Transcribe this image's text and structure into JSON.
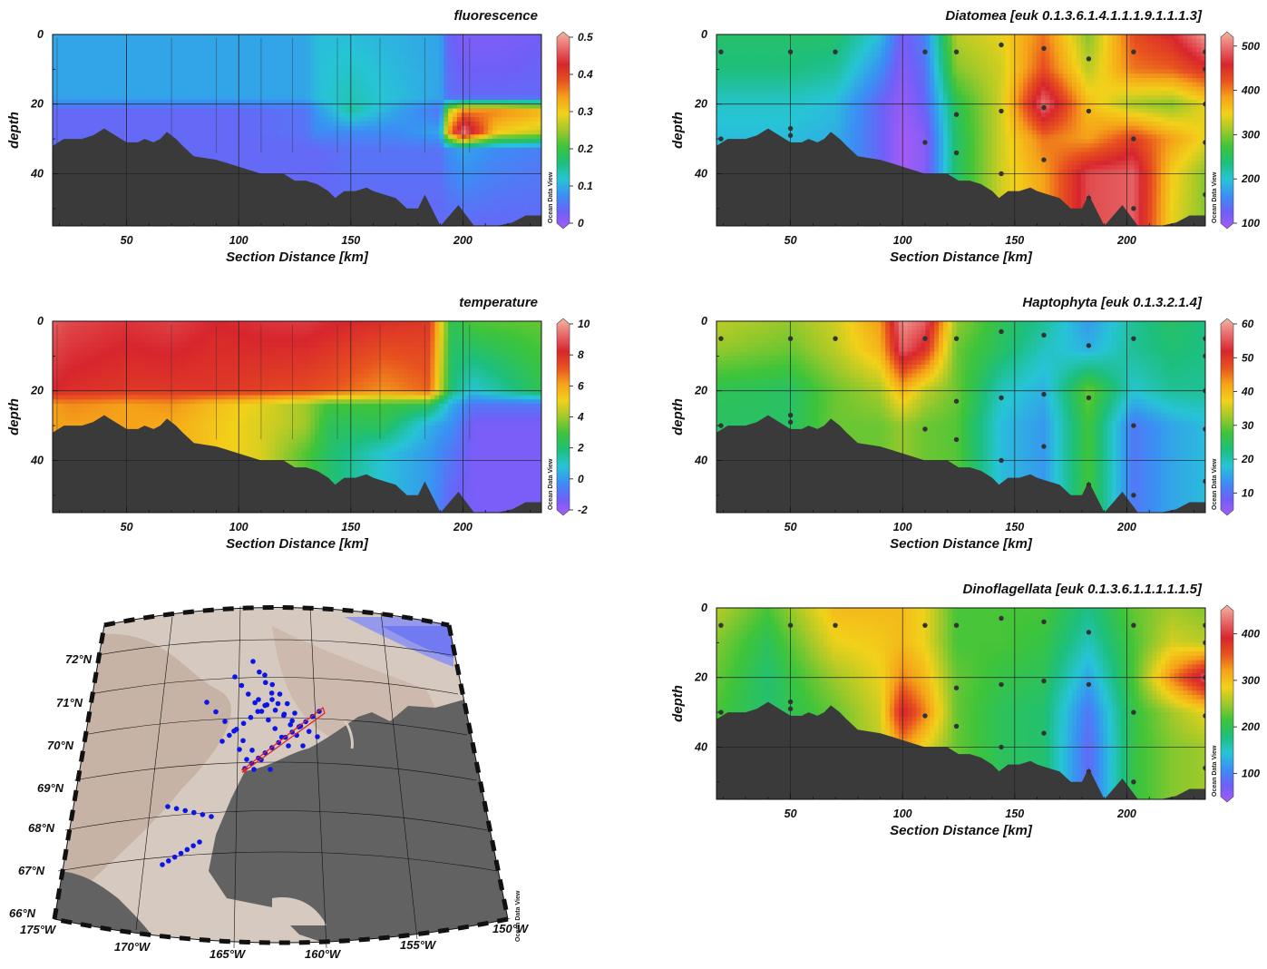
{
  "colors": {
    "bathymetry": "#3a3a3a",
    "grid": "#222222",
    "station_dot": "#333333",
    "map_land": "#626262",
    "map_shelf": "#d6c9bf",
    "map_deep_shelf": "#c7b2a6",
    "map_ice": "#8d93f0",
    "map_station": "#0b16e6",
    "map_track": "#e32020",
    "colormap": [
      "#a45cf5",
      "#6f5ff7",
      "#3a8ff4",
      "#27c4d6",
      "#1dbf7c",
      "#3ec43a",
      "#a0c92a",
      "#f2d11a",
      "#f5a319",
      "#e8521f",
      "#d7262d",
      "#e86a6a",
      "#f3b7a0"
    ]
  },
  "watermark": "Ocean Data View",
  "map": {
    "lat_labels": [
      "72°N",
      "71°N",
      "70°N",
      "69°N",
      "68°N",
      "67°N",
      "66°N"
    ],
    "lon_labels": [
      "175°W",
      "170°W",
      "165°W",
      "160°W",
      "155°W",
      "150°W"
    ]
  },
  "chart_data": [
    {
      "id": "fluorescence",
      "type": "heatmap",
      "title": "fluorescence",
      "xlabel": "Section Distance [km]",
      "ylabel": "depth",
      "xlim": [
        17,
        235
      ],
      "ylim": [
        55,
        0
      ],
      "xticks": [
        "50",
        "100",
        "150",
        "200"
      ],
      "yticks": [
        "0",
        "20",
        "40"
      ],
      "colorbar": {
        "range": [
          0,
          0.5
        ],
        "ticks": [
          "0",
          "0.1",
          "0.2",
          "0.3",
          "0.4",
          "0.5"
        ]
      },
      "station_distances_km": [
        19,
        50,
        70,
        90,
        110,
        124,
        144,
        163,
        183,
        203,
        235
      ],
      "field": {
        "cols": [
          17,
          40,
          70,
          100,
          130,
          135,
          150,
          170,
          190,
          193,
          200,
          215,
          235
        ],
        "rows": [
          0,
          18,
          22,
          28,
          33,
          55
        ],
        "values": [
          [
            0.1,
            0.1,
            0.1,
            0.1,
            0.1,
            0.12,
            0.12,
            0.11,
            0.1,
            0.05,
            0.03,
            0.03,
            0.04
          ],
          [
            0.1,
            0.1,
            0.1,
            0.1,
            0.1,
            0.12,
            0.14,
            0.12,
            0.1,
            0.06,
            0.05,
            0.05,
            0.05
          ],
          [
            0.05,
            0.05,
            0.05,
            0.05,
            0.06,
            0.09,
            0.15,
            0.1,
            0.06,
            0.25,
            0.35,
            0.35,
            0.32
          ],
          [
            0.05,
            0.05,
            0.05,
            0.05,
            0.06,
            0.08,
            0.08,
            0.08,
            0.1,
            0.32,
            0.48,
            0.3,
            0.27
          ],
          [
            0.05,
            0.05,
            0.05,
            0.05,
            0.05,
            0.05,
            0.06,
            0.06,
            0.06,
            0.08,
            0.1,
            0.08,
            0.07
          ],
          [
            0.05,
            0.05,
            0.05,
            0.05,
            0.05,
            0.05,
            0.05,
            0.05,
            0.05,
            0.05,
            0.05,
            0.05,
            0.05
          ]
        ]
      },
      "show_stations": false
    },
    {
      "id": "temperature",
      "type": "heatmap",
      "title": "temperature",
      "xlabel": "Section Distance [km]",
      "ylabel": "depth",
      "xlim": [
        17,
        235
      ],
      "ylim": [
        55,
        0
      ],
      "xticks": [
        "50",
        "100",
        "150",
        "200"
      ],
      "yticks": [
        "0",
        "20",
        "40"
      ],
      "colorbar": {
        "range": [
          -2,
          10
        ],
        "ticks": [
          "-2",
          "0",
          "2",
          "4",
          "6",
          "8",
          "10"
        ]
      },
      "station_distances_km": [
        19,
        50,
        70,
        90,
        110,
        124,
        144,
        163,
        183,
        203,
        235
      ],
      "field": {
        "cols": [
          17,
          25,
          50,
          70,
          90,
          110,
          130,
          140,
          165,
          185,
          195,
          205,
          235
        ],
        "rows": [
          0,
          20,
          24,
          30,
          38,
          55
        ],
        "values": [
          [
            8.8,
            8.5,
            8.2,
            8.4,
            8,
            8.2,
            8.3,
            8.1,
            7.8,
            7.6,
            2.5,
            3.2,
            3.4
          ],
          [
            8,
            7.8,
            7.6,
            7.6,
            7.6,
            7.4,
            7.2,
            7,
            6.2,
            6.8,
            2,
            1,
            2.6
          ],
          [
            6,
            6.3,
            6,
            6.2,
            5.4,
            4.8,
            4,
            3,
            3,
            2.6,
            0.5,
            -0.5,
            -0.5
          ],
          [
            6,
            6,
            6,
            5.8,
            5.2,
            4.7,
            4,
            2.5,
            2.5,
            0.6,
            0,
            -1.2,
            -1.2
          ],
          [
            6,
            6,
            6,
            5.8,
            5.2,
            4.7,
            3.2,
            2.3,
            1,
            0.2,
            -0.5,
            -1.2,
            -1.2
          ],
          [
            6,
            6,
            6,
            5.8,
            5.2,
            4.7,
            3,
            2.2,
            0.8,
            0.2,
            -1,
            -1.2,
            -1.2
          ]
        ]
      },
      "show_stations": false
    },
    {
      "id": "diatomea",
      "type": "heatmap",
      "title": "Diatomea [euk 0.1.3.6.1.4.1.1.1.9.1.1.1.3]",
      "xlabel": "Section Distance [km]",
      "ylabel": "depth",
      "xlim": [
        17,
        235
      ],
      "ylim": [
        55,
        0
      ],
      "xticks": [
        "50",
        "100",
        "150",
        "200"
      ],
      "yticks": [
        "0",
        "20",
        "40"
      ],
      "colorbar": {
        "range": [
          100,
          520
        ],
        "ticks": [
          "100",
          "200",
          "300",
          "400",
          "500"
        ]
      },
      "station_distances_km": [
        19,
        50,
        70,
        90,
        110,
        124,
        144,
        163,
        183,
        203,
        235
      ],
      "field": {
        "cols": [
          17,
          50,
          70,
          90,
          100,
          110,
          124,
          144,
          163,
          183,
          203,
          220,
          235
        ],
        "rows": [
          0,
          10,
          20,
          30,
          40,
          55
        ],
        "values": [
          [
            250,
            250,
            250,
            200,
            130,
            160,
            320,
            340,
            400,
            300,
            420,
            450,
            510
          ],
          [
            240,
            240,
            230,
            170,
            120,
            150,
            300,
            330,
            420,
            320,
            400,
            410,
            440
          ],
          [
            210,
            210,
            200,
            140,
            110,
            140,
            260,
            330,
            490,
            360,
            310,
            300,
            340
          ],
          [
            200,
            200,
            190,
            140,
            100,
            120,
            250,
            330,
            400,
            380,
            430,
            380,
            340
          ],
          [
            200,
            200,
            190,
            140,
            100,
            120,
            250,
            330,
            380,
            470,
            480,
            350,
            300
          ],
          [
            200,
            200,
            190,
            140,
            100,
            120,
            250,
            330,
            380,
            470,
            480,
            340,
            300
          ]
        ]
      },
      "show_stations": true
    },
    {
      "id": "haptophyta",
      "type": "heatmap",
      "title": "Haptophyta [euk 0.1.3.2.1.4]",
      "xlabel": "Section Distance [km]",
      "ylabel": "depth",
      "xlim": [
        17,
        235
      ],
      "ylim": [
        55,
        0
      ],
      "xticks": [
        "50",
        "100",
        "150",
        "200"
      ],
      "yticks": [
        "0",
        "20",
        "40"
      ],
      "colorbar": {
        "range": [
          5,
          60
        ],
        "ticks": [
          "10",
          "20",
          "30",
          "40",
          "50",
          "60"
        ]
      },
      "station_distances_km": [
        19,
        50,
        70,
        90,
        110,
        124,
        144,
        163,
        183,
        203,
        235
      ],
      "field": {
        "cols": [
          17,
          50,
          70,
          90,
          100,
          110,
          124,
          144,
          163,
          183,
          203,
          220,
          235
        ],
        "rows": [
          0,
          8,
          20,
          30,
          40,
          55
        ],
        "values": [
          [
            34,
            32,
            35,
            42,
            58,
            55,
            32,
            26,
            22,
            15,
            22,
            25,
            23
          ],
          [
            32,
            30,
            34,
            40,
            55,
            50,
            30,
            25,
            20,
            17,
            22,
            24,
            23
          ],
          [
            26,
            25,
            30,
            33,
            40,
            34,
            30,
            20,
            17,
            30,
            19,
            22,
            22
          ],
          [
            25,
            25,
            30,
            30,
            32,
            30,
            29,
            18,
            15,
            28,
            12,
            16,
            18
          ],
          [
            25,
            25,
            30,
            30,
            32,
            30,
            29,
            18,
            15,
            28,
            12,
            16,
            18
          ],
          [
            25,
            25,
            30,
            30,
            32,
            30,
            29,
            18,
            15,
            28,
            12,
            16,
            18
          ]
        ]
      },
      "show_stations": true
    },
    {
      "id": "dinoflagellata",
      "type": "heatmap",
      "title": "Dinoflagellata [euk 0.1.3.6.1.1.1.1.1.5]",
      "xlabel": "Section Distance [km]",
      "ylabel": "depth",
      "xlim": [
        17,
        235
      ],
      "ylim": [
        55,
        0
      ],
      "xticks": [
        "50",
        "100",
        "150",
        "200"
      ],
      "yticks": [
        "0",
        "20",
        "40"
      ],
      "colorbar": {
        "range": [
          50,
          450
        ],
        "ticks": [
          "100",
          "200",
          "300",
          "400"
        ]
      },
      "station_distances_km": [
        19,
        50,
        70,
        90,
        110,
        124,
        144,
        163,
        183,
        203,
        235
      ],
      "field": {
        "cols": [
          17,
          40,
          70,
          90,
          100,
          110,
          124,
          144,
          163,
          183,
          203,
          220,
          235
        ],
        "rows": [
          0,
          10,
          20,
          30,
          40,
          55
        ],
        "values": [
          [
            260,
            220,
            300,
            300,
            300,
            280,
            220,
            220,
            220,
            180,
            230,
            250,
            240
          ],
          [
            240,
            200,
            280,
            290,
            300,
            280,
            220,
            220,
            210,
            160,
            220,
            270,
            260
          ],
          [
            230,
            190,
            250,
            280,
            330,
            300,
            230,
            210,
            200,
            130,
            220,
            330,
            410
          ],
          [
            220,
            190,
            230,
            270,
            390,
            330,
            230,
            200,
            190,
            100,
            210,
            250,
            280
          ],
          [
            220,
            190,
            230,
            260,
            320,
            280,
            230,
            200,
            190,
            90,
            210,
            240,
            250
          ],
          [
            220,
            190,
            230,
            260,
            320,
            280,
            230,
            200,
            190,
            90,
            210,
            240,
            250
          ]
        ]
      },
      "show_stations": true
    }
  ]
}
